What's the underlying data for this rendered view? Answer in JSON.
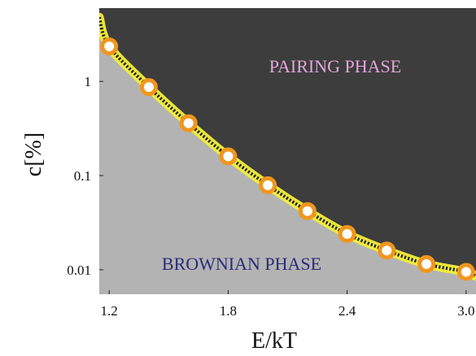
{
  "chart_data": {
    "type": "scatter",
    "title": "",
    "xlabel": "E/kT",
    "ylabel": "c[%]",
    "x_scale": "linear",
    "y_scale": "log",
    "xlim": [
      1.15,
      3.05
    ],
    "ylim": [
      0.0055,
      6.0
    ],
    "x_ticks": [
      1.2,
      1.8,
      2.4,
      3.0
    ],
    "x_tick_labels": [
      "1.2",
      "1.8",
      "2.4",
      "3.0"
    ],
    "y_ticks": [
      0.01,
      0.1,
      1
    ],
    "y_tick_labels": [
      "0.01",
      "0.1",
      "1"
    ],
    "grid": false,
    "regions": [
      {
        "name": "PAIRING PHASE",
        "side": "above",
        "color": "#3d3d3d",
        "label_color": "#e3a6d9"
      },
      {
        "name": "BROWNIAN PHASE",
        "side": "below",
        "color": "#b3b3b3",
        "label_color": "#2b2b7a"
      }
    ],
    "boundary": {
      "style": "dashed",
      "color": "#222222",
      "glow_color": "#f2ee3a",
      "x": [
        1.15,
        1.2,
        1.4,
        1.6,
        1.8,
        2.0,
        2.2,
        2.4,
        2.6,
        2.8,
        3.0,
        3.05
      ],
      "y": [
        4.8,
        2.35,
        0.87,
        0.36,
        0.16,
        0.079,
        0.042,
        0.024,
        0.016,
        0.0115,
        0.0095,
        0.0085
      ]
    },
    "series": [
      {
        "marker": "ring",
        "color": "#f0961e",
        "x": [
          1.2,
          1.4,
          1.6,
          1.8,
          2.0,
          2.2,
          2.4,
          2.6,
          2.8,
          3.0
        ],
        "y": [
          2.35,
          0.87,
          0.36,
          0.16,
          0.079,
          0.042,
          0.024,
          0.016,
          0.0115,
          0.0095
        ]
      }
    ]
  }
}
